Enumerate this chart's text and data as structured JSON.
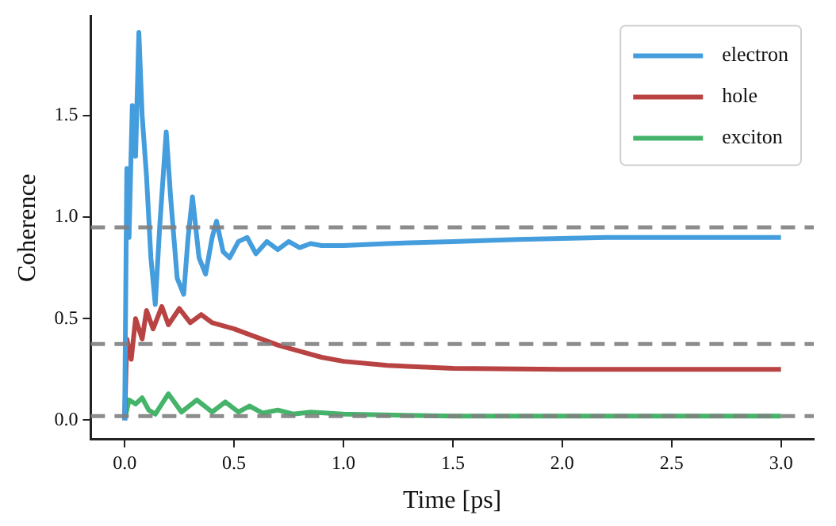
{
  "chart_data": {
    "type": "line",
    "xlabel": "Time [ps]",
    "ylabel": "Coherence",
    "xlim": [
      -0.155,
      3.15
    ],
    "ylim": [
      -0.095,
      1.99
    ],
    "xticks": [
      {
        "value": 0,
        "label": "0.0"
      },
      0.5,
      {
        "value": 1,
        "label": "1.0"
      },
      1.5,
      {
        "value": 2,
        "label": "2.0"
      },
      2.5,
      {
        "value": 3,
        "label": "3.0"
      }
    ],
    "yticks": [
      {
        "value": 0,
        "label": "0.0"
      },
      0.5,
      {
        "value": 1,
        "label": "1.0"
      },
      1.5
    ],
    "grid": false,
    "legend": "top right",
    "marker": "none",
    "line_style": "solid",
    "series": [
      {
        "name": "electron",
        "color": "#449ddc",
        "x": [
          0,
          0.01,
          0.02,
          0.035,
          0.05,
          0.065,
          0.08,
          0.1,
          0.12,
          0.14,
          0.16,
          0.19,
          0.21,
          0.24,
          0.27,
          0.29,
          0.31,
          0.34,
          0.37,
          0.4,
          0.42,
          0.45,
          0.48,
          0.52,
          0.56,
          0.6,
          0.65,
          0.7,
          0.75,
          0.8,
          0.85,
          0.9,
          1.0,
          1.2,
          1.5,
          1.8,
          2.2,
          2.6,
          3.0
        ],
        "values": [
          0,
          1.24,
          0.9,
          1.55,
          1.3,
          1.91,
          1.5,
          1.2,
          0.8,
          0.57,
          0.95,
          1.42,
          1.1,
          0.7,
          0.62,
          0.9,
          1.1,
          0.8,
          0.72,
          0.9,
          0.98,
          0.83,
          0.8,
          0.88,
          0.9,
          0.82,
          0.88,
          0.84,
          0.88,
          0.85,
          0.87,
          0.86,
          0.86,
          0.87,
          0.88,
          0.89,
          0.9,
          0.9,
          0.9
        ]
      },
      {
        "name": "hole",
        "color": "#b94343",
        "x": [
          0,
          0.01,
          0.03,
          0.05,
          0.08,
          0.1,
          0.13,
          0.17,
          0.2,
          0.25,
          0.3,
          0.35,
          0.4,
          0.5,
          0.6,
          0.7,
          0.8,
          0.9,
          1.0,
          1.2,
          1.5,
          2.0,
          3.0
        ],
        "values": [
          0,
          0.4,
          0.3,
          0.5,
          0.4,
          0.54,
          0.45,
          0.56,
          0.47,
          0.55,
          0.48,
          0.52,
          0.48,
          0.45,
          0.41,
          0.37,
          0.34,
          0.31,
          0.29,
          0.27,
          0.255,
          0.25,
          0.25
        ]
      },
      {
        "name": "exciton",
        "color": "#45b46a",
        "x": [
          0,
          0.02,
          0.05,
          0.08,
          0.11,
          0.14,
          0.2,
          0.26,
          0.33,
          0.4,
          0.46,
          0.52,
          0.57,
          0.63,
          0.7,
          0.77,
          0.85,
          1.0,
          1.5,
          2.0,
          3.0
        ],
        "values": [
          0,
          0.1,
          0.08,
          0.11,
          0.05,
          0.03,
          0.13,
          0.04,
          0.1,
          0.04,
          0.09,
          0.04,
          0.07,
          0.035,
          0.05,
          0.03,
          0.04,
          0.03,
          0.02,
          0.02,
          0.02
        ]
      }
    ],
    "ref_lines": [
      {
        "axis": "y",
        "value": 0.95,
        "color": "#808080",
        "line_style": "dashed"
      },
      {
        "axis": "y",
        "value": 0.375,
        "color": "#808080",
        "line_style": "dashed"
      },
      {
        "axis": "y",
        "value": 0.02,
        "color": "#808080",
        "line_style": "dashed"
      }
    ]
  }
}
